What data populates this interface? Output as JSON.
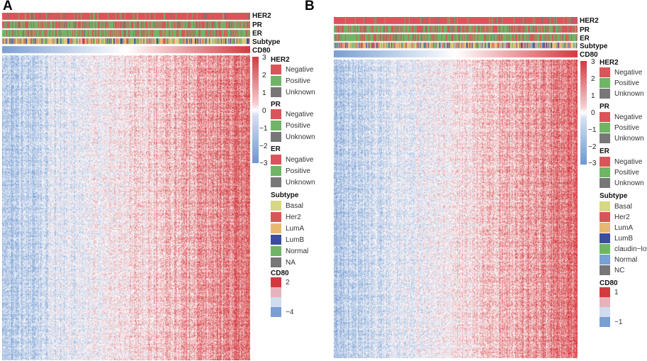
{
  "panels": [
    {
      "label": "A",
      "tracks": [
        "HER2",
        "PR",
        "ER",
        "Subtype",
        "CD80"
      ],
      "colorbar": {
        "ticks": [
          "3",
          "2",
          "1",
          "0",
          "−1",
          "−2",
          "−3"
        ]
      },
      "legends": [
        {
          "title": "HER2",
          "items": [
            {
              "label": "Negative",
              "color": "#d9555a"
            },
            {
              "label": "Positive",
              "color": "#6fb565"
            },
            {
              "label": "Unknown",
              "color": "#777777"
            }
          ]
        },
        {
          "title": "PR",
          "items": [
            {
              "label": "Negative",
              "color": "#d9555a"
            },
            {
              "label": "Positive",
              "color": "#6fb565"
            },
            {
              "label": "Unknown",
              "color": "#777777"
            }
          ]
        },
        {
          "title": "ER",
          "items": [
            {
              "label": "Negative",
              "color": "#d9555a"
            },
            {
              "label": "Positive",
              "color": "#6fb565"
            },
            {
              "label": "Unknown",
              "color": "#777777"
            }
          ]
        },
        {
          "title": "Subtype",
          "items": [
            {
              "label": "Basal",
              "color": "#d6d884"
            },
            {
              "label": "Her2",
              "color": "#d9555a"
            },
            {
              "label": "LumA",
              "color": "#e8b872"
            },
            {
              "label": "LumB",
              "color": "#3c4da0"
            },
            {
              "label": "Normal",
              "color": "#6fb565"
            },
            {
              "label": "NA",
              "color": "#777777"
            }
          ]
        },
        {
          "title": "CD80",
          "items": [
            {
              "label": "2",
              "color": "#d33a40"
            },
            {
              "label": "",
              "color": "#e7b3bb"
            },
            {
              "label": "",
              "color": "#cfdcef"
            },
            {
              "label": "−4",
              "color": "#7a9fd3"
            }
          ]
        }
      ]
    },
    {
      "label": "B",
      "tracks": [
        "HER2",
        "PR",
        "ER",
        "Subtype",
        "CD80"
      ],
      "colorbar": {
        "ticks": [
          "3",
          "2",
          "1",
          "0",
          "−1",
          "−2",
          "−3"
        ]
      },
      "legends": [
        {
          "title": "HER2",
          "items": [
            {
              "label": "Negative",
              "color": "#d9555a"
            },
            {
              "label": "Positive",
              "color": "#6fb565"
            },
            {
              "label": "Unknown",
              "color": "#777777"
            }
          ]
        },
        {
          "title": "PR",
          "items": [
            {
              "label": "Negative",
              "color": "#d9555a"
            },
            {
              "label": "Positive",
              "color": "#6fb565"
            },
            {
              "label": "Unknown",
              "color": "#777777"
            }
          ]
        },
        {
          "title": "ER",
          "items": [
            {
              "label": "Negative",
              "color": "#d9555a"
            },
            {
              "label": "Positive",
              "color": "#6fb565"
            },
            {
              "label": "Unknown",
              "color": "#777777"
            }
          ]
        },
        {
          "title": "Subtype",
          "items": [
            {
              "label": "Basal",
              "color": "#d6d884"
            },
            {
              "label": "Her2",
              "color": "#d9555a"
            },
            {
              "label": "LumA",
              "color": "#e8b872"
            },
            {
              "label": "LumB",
              "color": "#3c4da0"
            },
            {
              "label": "claudin−low",
              "color": "#6fb565"
            },
            {
              "label": "Normal",
              "color": "#7a9fd3"
            },
            {
              "label": "NC",
              "color": "#777777"
            }
          ]
        },
        {
          "title": "CD80",
          "items": [
            {
              "label": "1",
              "color": "#d33a40"
            },
            {
              "label": "",
              "color": "#e7b3bb"
            },
            {
              "label": "",
              "color": "#cfdcef"
            },
            {
              "label": "−1",
              "color": "#7a9fd3"
            }
          ]
        }
      ]
    }
  ]
}
